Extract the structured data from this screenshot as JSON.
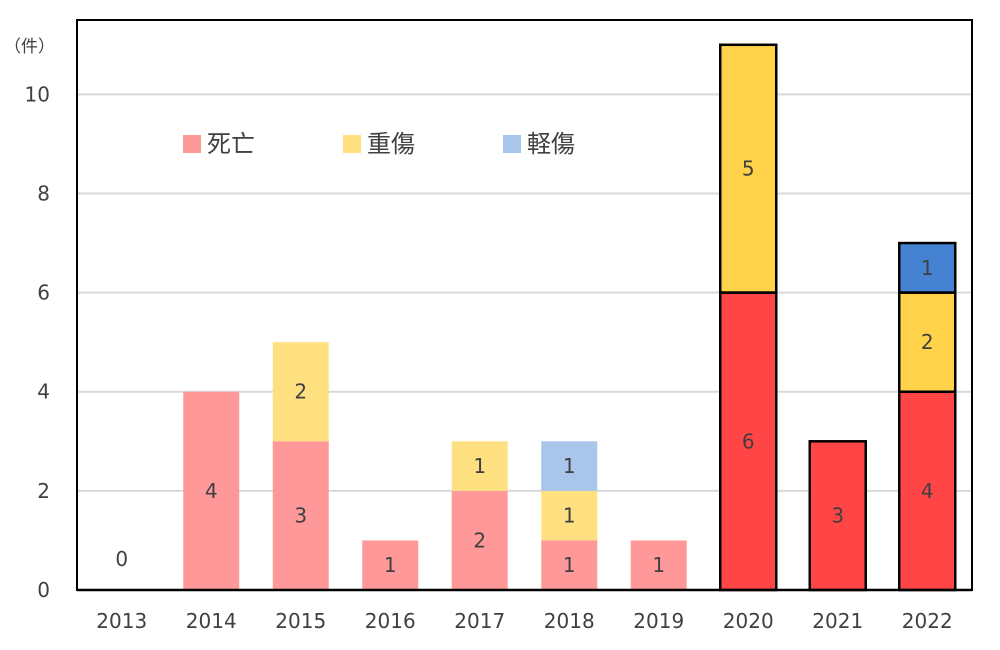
{
  "chart_data": {
    "type": "bar",
    "stacked": true,
    "y_unit_label": "（件）",
    "categories": [
      "2013",
      "2014",
      "2015",
      "2016",
      "2017",
      "2018",
      "2019",
      "2020",
      "2021",
      "2022"
    ],
    "series": [
      {
        "name": "死亡",
        "values": [
          0,
          4,
          3,
          1,
          2,
          1,
          1,
          6,
          3,
          4
        ]
      },
      {
        "name": "重傷",
        "values": [
          0,
          0,
          2,
          0,
          1,
          1,
          0,
          5,
          0,
          2
        ]
      },
      {
        "name": "軽傷",
        "values": [
          0,
          0,
          0,
          0,
          0,
          1,
          0,
          0,
          0,
          1
        ]
      }
    ],
    "zero_labels": [
      "0",
      "",
      "",
      "",
      "",
      "",
      "",
      "",
      "",
      ""
    ],
    "ylim": [
      0,
      11.5
    ],
    "yticks": [
      0,
      2,
      4,
      6,
      8,
      10
    ],
    "grid": true,
    "legend_position": "top-left",
    "colors": {
      "faded": {
        "死亡": "#ff9999",
        "重傷": "#ffe080",
        "軽傷": "#a9c6ea"
      },
      "highlight": {
        "死亡": "#ff4545",
        "重傷": "#ffd249",
        "軽傷": "#4682d2"
      },
      "highlight_categories": [
        "2020",
        "2021",
        "2022"
      ],
      "grid": "#d9d9d9",
      "axis": "#000000",
      "text": "#404040"
    }
  }
}
